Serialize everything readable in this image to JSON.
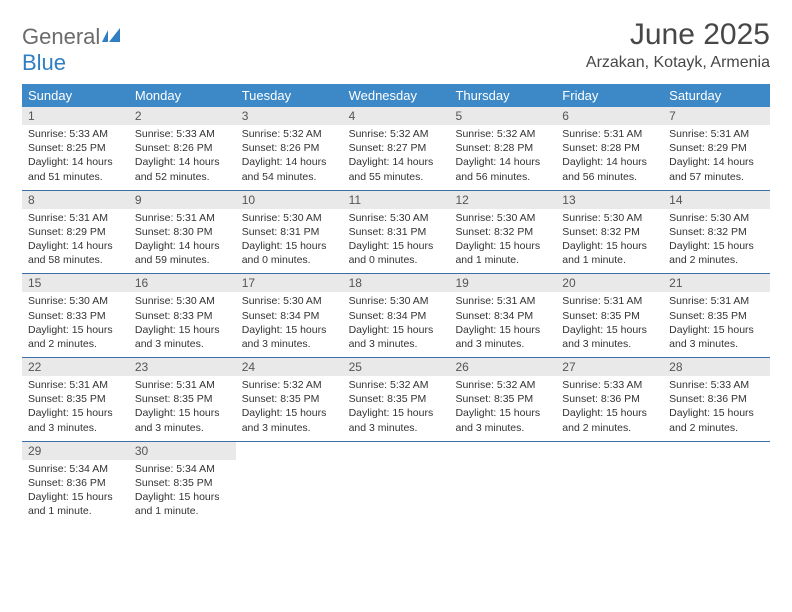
{
  "logo": {
    "text1": "General",
    "text2": "Blue"
  },
  "title": "June 2025",
  "location": "Arzakan, Kotayk, Armenia",
  "colors": {
    "header_bg": "#3d88c7",
    "header_text": "#ffffff",
    "daynum_bg": "#e9e9e9",
    "row_border": "#3d6fa5",
    "title_color": "#474747",
    "logo_gray": "#6b6b6b",
    "logo_blue": "#2f7fc2"
  },
  "dow": [
    "Sunday",
    "Monday",
    "Tuesday",
    "Wednesday",
    "Thursday",
    "Friday",
    "Saturday"
  ],
  "weeks": [
    [
      {
        "n": "1",
        "sr": "Sunrise: 5:33 AM",
        "ss": "Sunset: 8:25 PM",
        "d1": "Daylight: 14 hours",
        "d2": "and 51 minutes."
      },
      {
        "n": "2",
        "sr": "Sunrise: 5:33 AM",
        "ss": "Sunset: 8:26 PM",
        "d1": "Daylight: 14 hours",
        "d2": "and 52 minutes."
      },
      {
        "n": "3",
        "sr": "Sunrise: 5:32 AM",
        "ss": "Sunset: 8:26 PM",
        "d1": "Daylight: 14 hours",
        "d2": "and 54 minutes."
      },
      {
        "n": "4",
        "sr": "Sunrise: 5:32 AM",
        "ss": "Sunset: 8:27 PM",
        "d1": "Daylight: 14 hours",
        "d2": "and 55 minutes."
      },
      {
        "n": "5",
        "sr": "Sunrise: 5:32 AM",
        "ss": "Sunset: 8:28 PM",
        "d1": "Daylight: 14 hours",
        "d2": "and 56 minutes."
      },
      {
        "n": "6",
        "sr": "Sunrise: 5:31 AM",
        "ss": "Sunset: 8:28 PM",
        "d1": "Daylight: 14 hours",
        "d2": "and 56 minutes."
      },
      {
        "n": "7",
        "sr": "Sunrise: 5:31 AM",
        "ss": "Sunset: 8:29 PM",
        "d1": "Daylight: 14 hours",
        "d2": "and 57 minutes."
      }
    ],
    [
      {
        "n": "8",
        "sr": "Sunrise: 5:31 AM",
        "ss": "Sunset: 8:29 PM",
        "d1": "Daylight: 14 hours",
        "d2": "and 58 minutes."
      },
      {
        "n": "9",
        "sr": "Sunrise: 5:31 AM",
        "ss": "Sunset: 8:30 PM",
        "d1": "Daylight: 14 hours",
        "d2": "and 59 minutes."
      },
      {
        "n": "10",
        "sr": "Sunrise: 5:30 AM",
        "ss": "Sunset: 8:31 PM",
        "d1": "Daylight: 15 hours",
        "d2": "and 0 minutes."
      },
      {
        "n": "11",
        "sr": "Sunrise: 5:30 AM",
        "ss": "Sunset: 8:31 PM",
        "d1": "Daylight: 15 hours",
        "d2": "and 0 minutes."
      },
      {
        "n": "12",
        "sr": "Sunrise: 5:30 AM",
        "ss": "Sunset: 8:32 PM",
        "d1": "Daylight: 15 hours",
        "d2": "and 1 minute."
      },
      {
        "n": "13",
        "sr": "Sunrise: 5:30 AM",
        "ss": "Sunset: 8:32 PM",
        "d1": "Daylight: 15 hours",
        "d2": "and 1 minute."
      },
      {
        "n": "14",
        "sr": "Sunrise: 5:30 AM",
        "ss": "Sunset: 8:32 PM",
        "d1": "Daylight: 15 hours",
        "d2": "and 2 minutes."
      }
    ],
    [
      {
        "n": "15",
        "sr": "Sunrise: 5:30 AM",
        "ss": "Sunset: 8:33 PM",
        "d1": "Daylight: 15 hours",
        "d2": "and 2 minutes."
      },
      {
        "n": "16",
        "sr": "Sunrise: 5:30 AM",
        "ss": "Sunset: 8:33 PM",
        "d1": "Daylight: 15 hours",
        "d2": "and 3 minutes."
      },
      {
        "n": "17",
        "sr": "Sunrise: 5:30 AM",
        "ss": "Sunset: 8:34 PM",
        "d1": "Daylight: 15 hours",
        "d2": "and 3 minutes."
      },
      {
        "n": "18",
        "sr": "Sunrise: 5:30 AM",
        "ss": "Sunset: 8:34 PM",
        "d1": "Daylight: 15 hours",
        "d2": "and 3 minutes."
      },
      {
        "n": "19",
        "sr": "Sunrise: 5:31 AM",
        "ss": "Sunset: 8:34 PM",
        "d1": "Daylight: 15 hours",
        "d2": "and 3 minutes."
      },
      {
        "n": "20",
        "sr": "Sunrise: 5:31 AM",
        "ss": "Sunset: 8:35 PM",
        "d1": "Daylight: 15 hours",
        "d2": "and 3 minutes."
      },
      {
        "n": "21",
        "sr": "Sunrise: 5:31 AM",
        "ss": "Sunset: 8:35 PM",
        "d1": "Daylight: 15 hours",
        "d2": "and 3 minutes."
      }
    ],
    [
      {
        "n": "22",
        "sr": "Sunrise: 5:31 AM",
        "ss": "Sunset: 8:35 PM",
        "d1": "Daylight: 15 hours",
        "d2": "and 3 minutes."
      },
      {
        "n": "23",
        "sr": "Sunrise: 5:31 AM",
        "ss": "Sunset: 8:35 PM",
        "d1": "Daylight: 15 hours",
        "d2": "and 3 minutes."
      },
      {
        "n": "24",
        "sr": "Sunrise: 5:32 AM",
        "ss": "Sunset: 8:35 PM",
        "d1": "Daylight: 15 hours",
        "d2": "and 3 minutes."
      },
      {
        "n": "25",
        "sr": "Sunrise: 5:32 AM",
        "ss": "Sunset: 8:35 PM",
        "d1": "Daylight: 15 hours",
        "d2": "and 3 minutes."
      },
      {
        "n": "26",
        "sr": "Sunrise: 5:32 AM",
        "ss": "Sunset: 8:35 PM",
        "d1": "Daylight: 15 hours",
        "d2": "and 3 minutes."
      },
      {
        "n": "27",
        "sr": "Sunrise: 5:33 AM",
        "ss": "Sunset: 8:36 PM",
        "d1": "Daylight: 15 hours",
        "d2": "and 2 minutes."
      },
      {
        "n": "28",
        "sr": "Sunrise: 5:33 AM",
        "ss": "Sunset: 8:36 PM",
        "d1": "Daylight: 15 hours",
        "d2": "and 2 minutes."
      }
    ],
    [
      {
        "n": "29",
        "sr": "Sunrise: 5:34 AM",
        "ss": "Sunset: 8:36 PM",
        "d1": "Daylight: 15 hours",
        "d2": "and 1 minute."
      },
      {
        "n": "30",
        "sr": "Sunrise: 5:34 AM",
        "ss": "Sunset: 8:35 PM",
        "d1": "Daylight: 15 hours",
        "d2": "and 1 minute."
      },
      {
        "empty": true
      },
      {
        "empty": true
      },
      {
        "empty": true
      },
      {
        "empty": true
      },
      {
        "empty": true
      }
    ]
  ]
}
